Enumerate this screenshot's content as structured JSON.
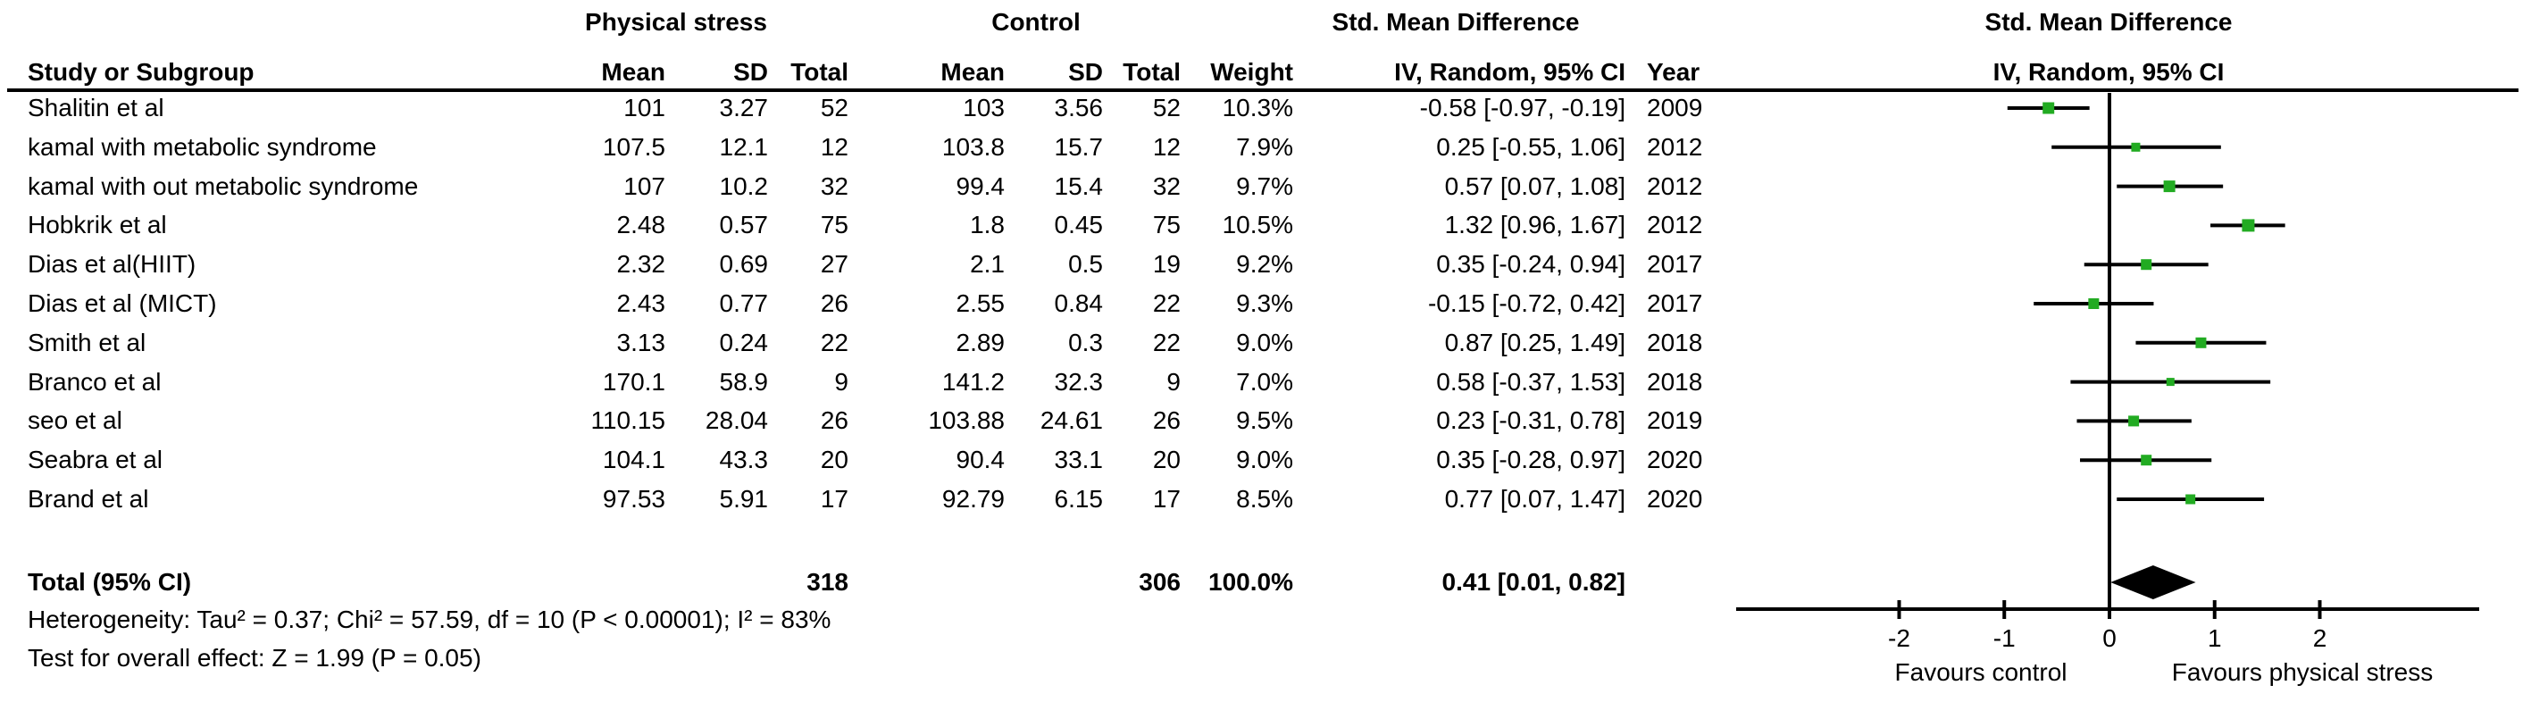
{
  "table": {
    "group_headers": {
      "experimental": "Physical stress",
      "control": "Control",
      "smd_table": "Std. Mean Difference",
      "smd_plot": "Std. Mean Difference"
    },
    "columns": {
      "study": "Study or Subgroup",
      "mean": "Mean",
      "sd": "SD",
      "total": "Total",
      "weight": "Weight",
      "ci": "IV, Random, 95% CI",
      "year": "Year",
      "ci_plot": "IV, Random, 95% CI"
    }
  },
  "studies": [
    {
      "name": "Shalitin et al",
      "mean_e": "101",
      "sd_e": "3.27",
      "total_e": "52",
      "mean_c": "103",
      "sd_c": "3.56",
      "total_c": "52",
      "weight": "10.3%",
      "ci_text": "-0.58 [-0.97, -0.19]",
      "year": "2009",
      "est": -0.58,
      "lo": -0.97,
      "hi": -0.19
    },
    {
      "name": "kamal with metabolic syndrome",
      "mean_e": "107.5",
      "sd_e": "12.1",
      "total_e": "12",
      "mean_c": "103.8",
      "sd_c": "15.7",
      "total_c": "12",
      "weight": "7.9%",
      "ci_text": "0.25 [-0.55, 1.06]",
      "year": "2012",
      "est": 0.25,
      "lo": -0.55,
      "hi": 1.06
    },
    {
      "name": "kamal with out metabolic syndrome",
      "mean_e": "107",
      "sd_e": "10.2",
      "total_e": "32",
      "mean_c": "99.4",
      "sd_c": "15.4",
      "total_c": "32",
      "weight": "9.7%",
      "ci_text": "0.57 [0.07, 1.08]",
      "year": "2012",
      "est": 0.57,
      "lo": 0.07,
      "hi": 1.08
    },
    {
      "name": "Hobkrik et al",
      "mean_e": "2.48",
      "sd_e": "0.57",
      "total_e": "75",
      "mean_c": "1.8",
      "sd_c": "0.45",
      "total_c": "75",
      "weight": "10.5%",
      "ci_text": "1.32 [0.96, 1.67]",
      "year": "2012",
      "est": 1.32,
      "lo": 0.96,
      "hi": 1.67
    },
    {
      "name": "Dias et al(HIIT)",
      "mean_e": "2.32",
      "sd_e": "0.69",
      "total_e": "27",
      "mean_c": "2.1",
      "sd_c": "0.5",
      "total_c": "19",
      "weight": "9.2%",
      "ci_text": "0.35 [-0.24, 0.94]",
      "year": "2017",
      "est": 0.35,
      "lo": -0.24,
      "hi": 0.94
    },
    {
      "name": "Dias et al (MICT)",
      "mean_e": "2.43",
      "sd_e": "0.77",
      "total_e": "26",
      "mean_c": "2.55",
      "sd_c": "0.84",
      "total_c": "22",
      "weight": "9.3%",
      "ci_text": "-0.15 [-0.72, 0.42]",
      "year": "2017",
      "est": -0.15,
      "lo": -0.72,
      "hi": 0.42
    },
    {
      "name": "Smith et al",
      "mean_e": "3.13",
      "sd_e": "0.24",
      "total_e": "22",
      "mean_c": "2.89",
      "sd_c": "0.3",
      "total_c": "22",
      "weight": "9.0%",
      "ci_text": "0.87 [0.25, 1.49]",
      "year": "2018",
      "est": 0.87,
      "lo": 0.25,
      "hi": 1.49
    },
    {
      "name": "Branco et al",
      "mean_e": "170.1",
      "sd_e": "58.9",
      "total_e": "9",
      "mean_c": "141.2",
      "sd_c": "32.3",
      "total_c": "9",
      "weight": "7.0%",
      "ci_text": "0.58 [-0.37, 1.53]",
      "year": "2018",
      "est": 0.58,
      "lo": -0.37,
      "hi": 1.53
    },
    {
      "name": "seo et al",
      "mean_e": "110.15",
      "sd_e": "28.04",
      "total_e": "26",
      "mean_c": "103.88",
      "sd_c": "24.61",
      "total_c": "26",
      "weight": "9.5%",
      "ci_text": "0.23 [-0.31, 0.78]",
      "year": "2019",
      "est": 0.23,
      "lo": -0.31,
      "hi": 0.78
    },
    {
      "name": "Seabra et al",
      "mean_e": "104.1",
      "sd_e": "43.3",
      "total_e": "20",
      "mean_c": "90.4",
      "sd_c": "33.1",
      "total_c": "20",
      "weight": "9.0%",
      "ci_text": "0.35 [-0.28, 0.97]",
      "year": "2020",
      "est": 0.35,
      "lo": -0.28,
      "hi": 0.97
    },
    {
      "name": "Brand et al",
      "mean_e": "97.53",
      "sd_e": "5.91",
      "total_e": "17",
      "mean_c": "92.79",
      "sd_c": "6.15",
      "total_c": "17",
      "weight": "8.5%",
      "ci_text": "0.77 [0.07, 1.47]",
      "year": "2020",
      "est": 0.77,
      "lo": 0.07,
      "hi": 1.47
    }
  ],
  "total_row": {
    "label": "Total (95% CI)",
    "total_e": "318",
    "total_c": "306",
    "weight": "100.0%",
    "ci_text": "0.41 [0.01, 0.82]",
    "est": 0.41,
    "lo": 0.01,
    "hi": 0.82
  },
  "footnotes": {
    "heterogeneity": "Heterogeneity: Tau² = 0.37; Chi² = 57.59, df = 10 (P < 0.00001); I² = 83%",
    "overall_effect": "Test for overall effect: Z = 1.99 (P = 0.05)"
  },
  "plot": {
    "ticks": [
      "-2",
      "-1",
      "0",
      "1",
      "2"
    ],
    "tick_values": [
      -2,
      -1,
      0,
      1,
      2
    ],
    "xlim": [
      -3.55,
      3.52
    ],
    "favours_left": "Favours control",
    "favours_right": "Favours physical stress",
    "marker_color": "#22ab22",
    "line_color": "#000000",
    "diamond_color": "#000000"
  },
  "chart_data": {
    "type": "scatter",
    "subtype": "forest-plot",
    "title": "Std. Mean Difference, IV, Random, 95% CI",
    "categories": [
      "Shalitin et al",
      "kamal with metabolic syndrome",
      "kamal with out metabolic syndrome",
      "Hobkrik et al",
      "Dias et al(HIIT)",
      "Dias et al (MICT)",
      "Smith et al",
      "Branco et al",
      "seo et al",
      "Seabra et al",
      "Brand et al"
    ],
    "series": [
      {
        "name": "Std. Mean Difference",
        "values": [
          -0.58,
          0.25,
          0.57,
          1.32,
          0.35,
          -0.15,
          0.87,
          0.58,
          0.23,
          0.35,
          0.77
        ]
      },
      {
        "name": "CI lower",
        "values": [
          -0.97,
          -0.55,
          0.07,
          0.96,
          -0.24,
          -0.72,
          0.25,
          -0.37,
          -0.31,
          -0.28,
          0.07
        ]
      },
      {
        "name": "CI upper",
        "values": [
          -0.19,
          1.06,
          1.08,
          1.67,
          0.94,
          0.42,
          1.49,
          1.53,
          0.78,
          0.97,
          1.47
        ]
      },
      {
        "name": "Weight %",
        "values": [
          10.3,
          7.9,
          9.7,
          10.5,
          9.2,
          9.3,
          9.0,
          7.0,
          9.5,
          9.0,
          8.5
        ]
      },
      {
        "name": "Year",
        "values": [
          2009,
          2012,
          2012,
          2012,
          2017,
          2017,
          2018,
          2018,
          2019,
          2020,
          2020
        ]
      }
    ],
    "total": {
      "label": "Total (95% CI)",
      "est": 0.41,
      "lo": 0.01,
      "hi": 0.82
    },
    "xlabel": "Favours control | Favours physical stress",
    "ylabel": "",
    "xlim": [
      -3.55,
      3.52
    ],
    "x_ticks": [
      -2,
      -1,
      0,
      1,
      2
    ],
    "grid": false,
    "legend_position": "none"
  }
}
